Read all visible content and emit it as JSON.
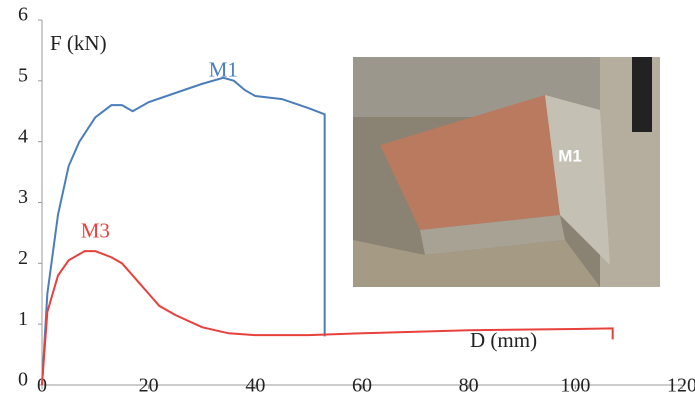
{
  "chart_data": {
    "type": "line",
    "x_label": "D (mm)",
    "y_label": "F (kN)",
    "xlim": [
      0,
      120
    ],
    "xticks": [
      0,
      20,
      40,
      60,
      80,
      100,
      120
    ],
    "ylim": [
      0,
      6
    ],
    "yticks": [
      0,
      1,
      2,
      3,
      4,
      5,
      6
    ],
    "photo_label": "M1",
    "series": [
      {
        "name": "M1",
        "color": "#4a7ebb",
        "x": [
          0,
          1,
          3,
          5,
          7,
          10,
          13,
          15,
          17,
          20,
          25,
          30,
          34,
          36,
          38,
          40,
          45,
          50,
          53,
          53
        ],
        "values": [
          0,
          1.5,
          2.8,
          3.6,
          4.0,
          4.4,
          4.6,
          4.6,
          4.5,
          4.65,
          4.8,
          4.95,
          5.05,
          5.0,
          4.85,
          4.75,
          4.7,
          4.55,
          4.45,
          0.8
        ]
      },
      {
        "name": "M3",
        "color": "#e8413c",
        "x": [
          0,
          1,
          3,
          5,
          8,
          10,
          13,
          15,
          18,
          20,
          22,
          25,
          30,
          35,
          40,
          50,
          60,
          80,
          100,
          107,
          107
        ],
        "values": [
          0,
          1.2,
          1.8,
          2.05,
          2.2,
          2.2,
          2.1,
          2.0,
          1.7,
          1.5,
          1.3,
          1.15,
          0.95,
          0.85,
          0.82,
          0.82,
          0.85,
          0.9,
          0.92,
          0.93,
          0.75
        ]
      }
    ]
  }
}
